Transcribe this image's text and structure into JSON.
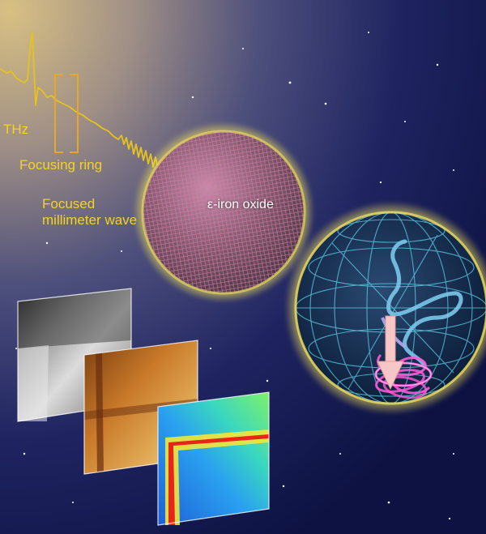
{
  "labels": {
    "thz": "THz",
    "focusing_ring": "Focusing ring",
    "focused_wave_line1": "Focused",
    "focused_wave_line2": "millimeter wave",
    "material": "ε-iron oxide"
  },
  "colors": {
    "label_yellow": "#f4d22a",
    "waveform_yellow": "#e6c21e",
    "sphere_glow": "#f1e15a",
    "bloch_grid": "#5fd0e8",
    "spin_arrow": "#f7c6c6",
    "precession_trail": "#ff5ad8"
  },
  "icons": {
    "particle": "nanoparticle-sphere",
    "bloch": "bloch-sphere-icon",
    "arrow": "spin-arrow-icon"
  }
}
